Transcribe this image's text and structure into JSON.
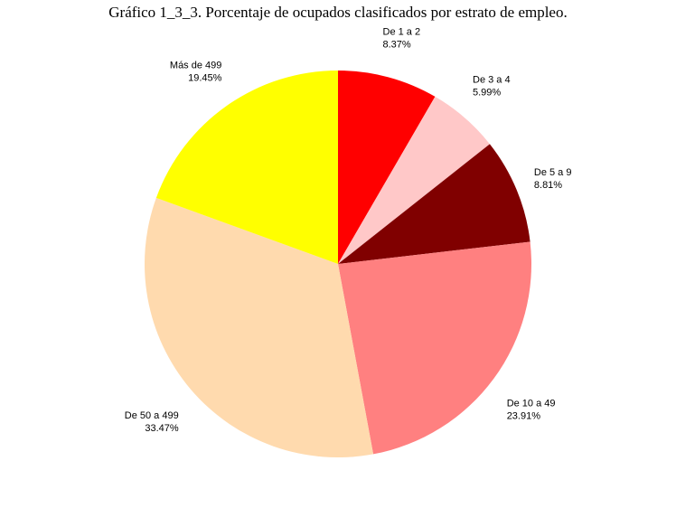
{
  "chart_data": {
    "type": "pie",
    "title": "Gráfico 1_3_3. Porcentaje de ocupados clasificados por estrato de empleo.",
    "slices": [
      {
        "label": "De 1 a 2",
        "value": 8.37,
        "value_label": "8.37%",
        "color": "#ff0000"
      },
      {
        "label": "De 3 a 4",
        "value": 5.99,
        "value_label": "5.99%",
        "color": "#ffc8c8"
      },
      {
        "label": "De 5 a 9",
        "value": 8.81,
        "value_label": "8.81%",
        "color": "#800000"
      },
      {
        "label": "De 10 a 49",
        "value": 23.91,
        "value_label": "23.91%",
        "color": "#ff8080"
      },
      {
        "label": "De 50 a 499",
        "value": 33.47,
        "value_label": "33.47%",
        "color": "#ffdaae"
      },
      {
        "label": "Más de 499",
        "value": 19.45,
        "value_label": "19.45%",
        "color": "#ffff00"
      }
    ],
    "start_angle": "12 o'clock",
    "direction": "clockwise",
    "legend": "none"
  }
}
